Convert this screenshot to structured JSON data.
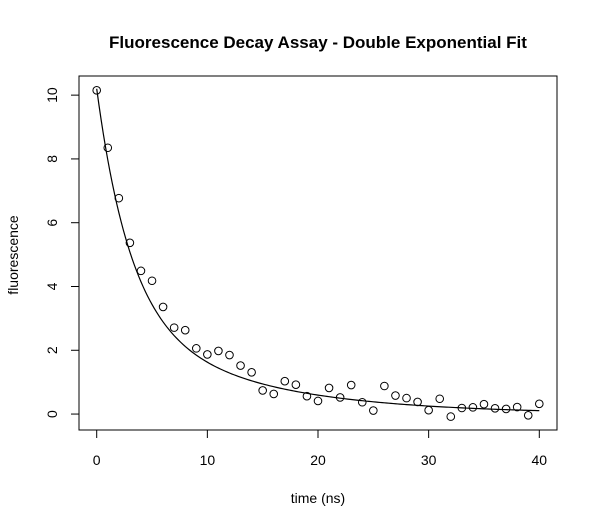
{
  "chart_data": {
    "type": "scatter",
    "title": "Fluorescence Decay Assay - Double Exponential Fit",
    "xlabel": "time (ns)",
    "ylabel": "fluorescence",
    "xlim": [
      -1.6,
      41.6
    ],
    "ylim": [
      -0.5,
      10.6
    ],
    "x_ticks": [
      0,
      10,
      20,
      30,
      40
    ],
    "y_ticks": [
      0,
      2,
      4,
      6,
      8,
      10
    ],
    "grid": false,
    "legend": "none",
    "series": [
      {
        "kind": "points",
        "marker": "open-circle",
        "x": [
          0,
          1,
          2,
          3,
          4,
          5,
          6,
          7,
          8,
          9,
          10,
          11,
          12,
          13,
          14,
          15,
          16,
          17,
          18,
          19,
          20,
          21,
          22,
          23,
          24,
          25,
          26,
          27,
          28,
          29,
          30,
          31,
          32,
          33,
          34,
          35,
          36,
          37,
          38,
          39,
          40
        ],
        "y": [
          10.15,
          8.35,
          6.77,
          5.37,
          4.49,
          4.18,
          3.36,
          2.71,
          2.63,
          2.06,
          1.87,
          1.98,
          1.85,
          1.52,
          1.31,
          0.74,
          0.63,
          1.03,
          0.92,
          0.56,
          0.41,
          0.82,
          0.52,
          0.91,
          0.37,
          0.11,
          0.88,
          0.58,
          0.5,
          0.38,
          0.12,
          0.48,
          -0.08,
          0.19,
          0.21,
          0.31,
          0.18,
          0.16,
          0.22,
          -0.04,
          0.32
        ]
      },
      {
        "kind": "fit",
        "model": "double-exponential",
        "params": {
          "a1": 7.0,
          "k1": 0.33,
          "a2": 3.2,
          "k2": 0.085
        },
        "x_range": [
          0,
          40
        ]
      }
    ]
  }
}
